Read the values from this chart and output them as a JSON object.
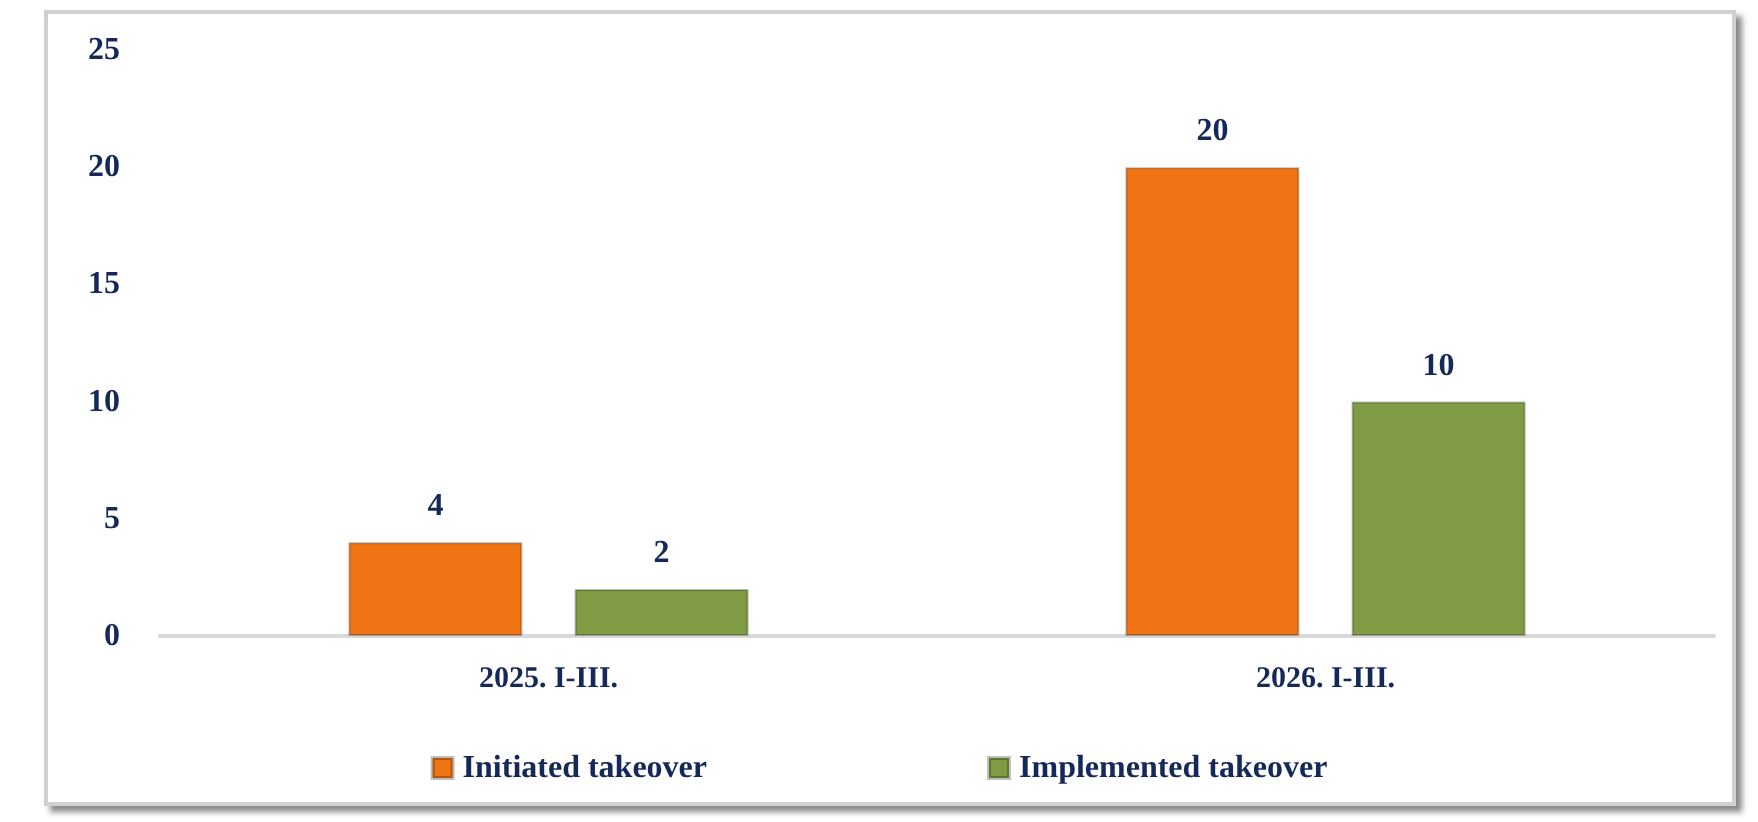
{
  "chart_data": {
    "type": "bar",
    "categories": [
      "2025. I-III.",
      "2026. I-III."
    ],
    "series": [
      {
        "name": "Initiated takeover",
        "color": "#f07413",
        "values": [
          4,
          20
        ]
      },
      {
        "name": "Implemented takeover",
        "color": "#7f9c44",
        "values": [
          2,
          10
        ]
      }
    ],
    "ylim": [
      0,
      25
    ],
    "yticks": [
      0,
      5,
      10,
      15,
      20,
      25
    ],
    "data_labels": true,
    "grid": false,
    "legend": "bottom"
  }
}
